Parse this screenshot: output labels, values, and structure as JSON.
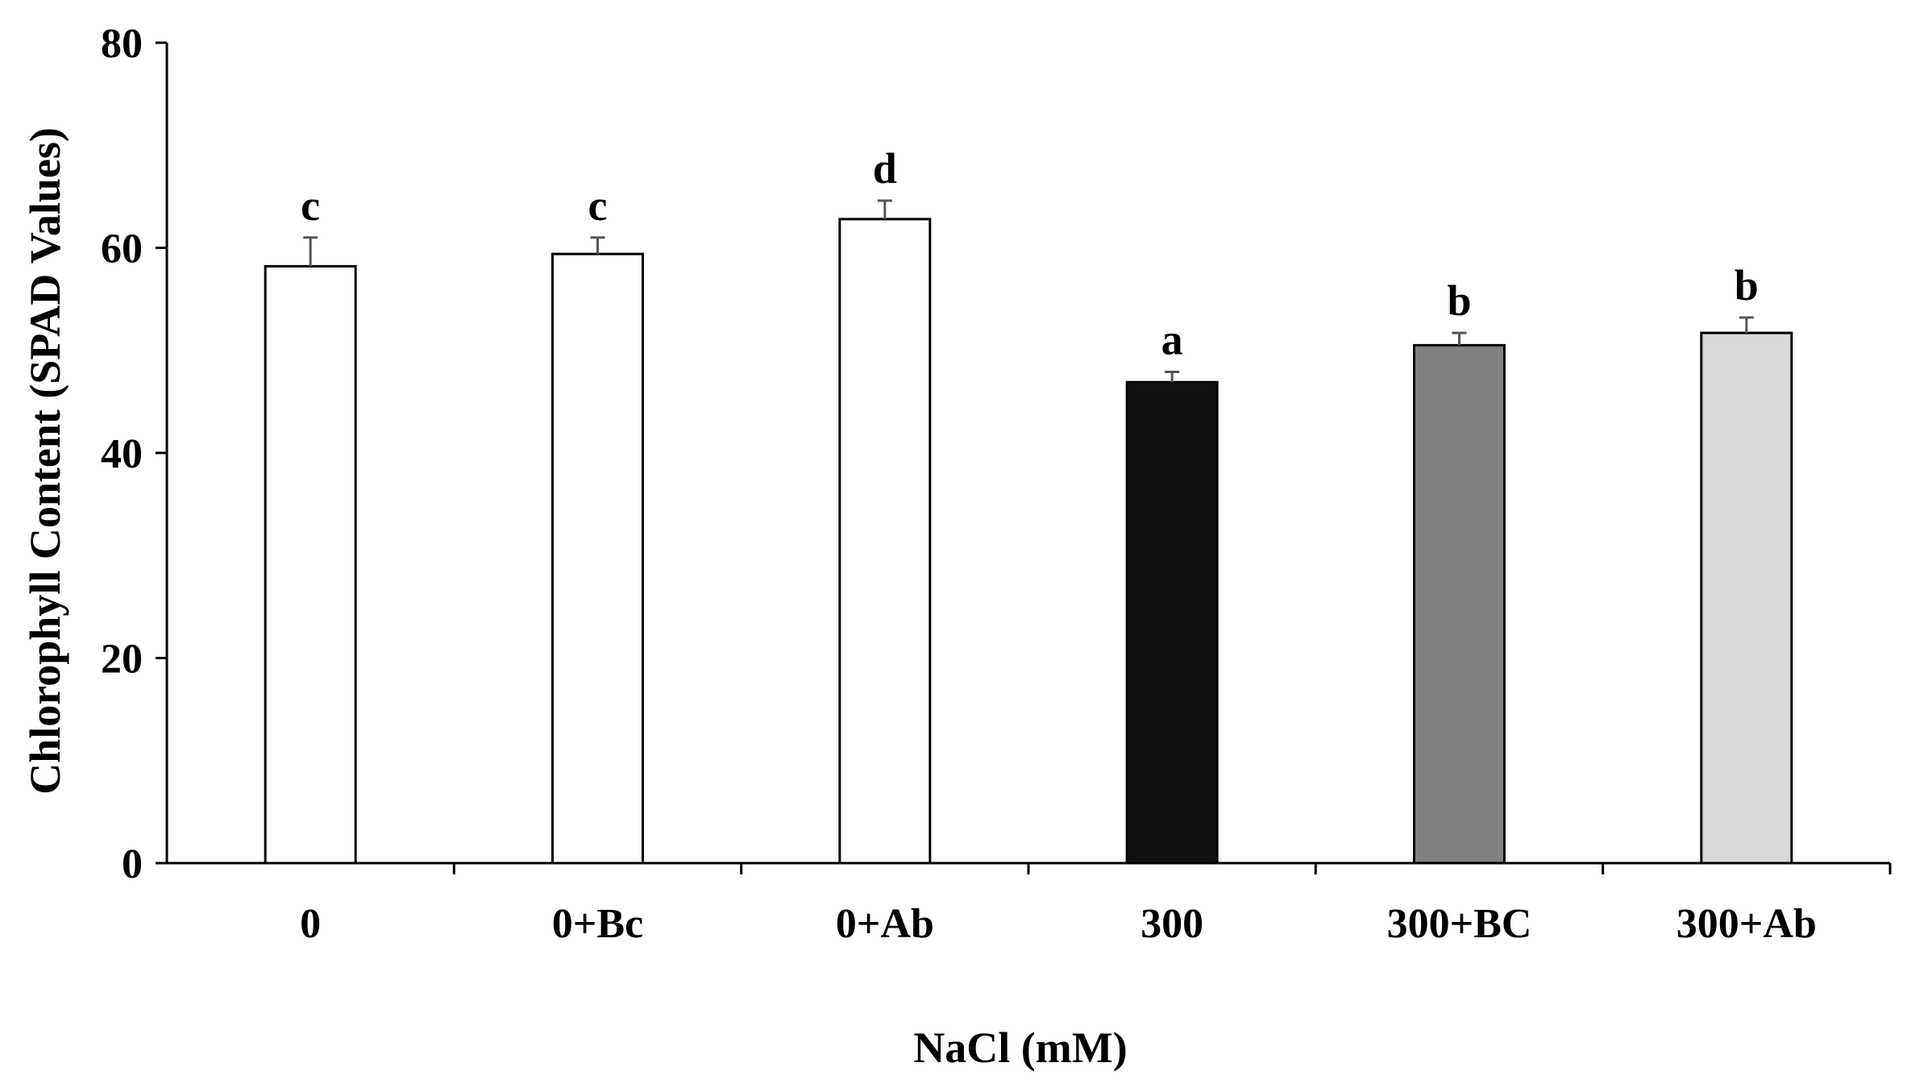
{
  "chart_data": {
    "type": "bar",
    "categories": [
      "0",
      "0+Bc",
      "0+Ab",
      "300",
      "300+BC",
      "300+Ab"
    ],
    "values": [
      58.2,
      59.4,
      62.8,
      46.9,
      50.5,
      51.7
    ],
    "errors": [
      2.8,
      1.6,
      1.8,
      1.0,
      1.2,
      1.5
    ],
    "significance_letters": [
      "c",
      "c",
      "d",
      "a",
      "b",
      "b"
    ],
    "bar_colors": [
      "#ffffff",
      "#ffffff",
      "#ffffff",
      "#111111",
      "#808080",
      "#d9d9d9"
    ],
    "title": "",
    "xlabel": "NaCl (mM)",
    "ylabel": "Chlorophyll Content (SPAD Values)",
    "ylim": [
      0,
      80
    ],
    "yticks": [
      "0",
      "20",
      "40",
      "60",
      "80"
    ],
    "grid": false,
    "legend": "none"
  }
}
